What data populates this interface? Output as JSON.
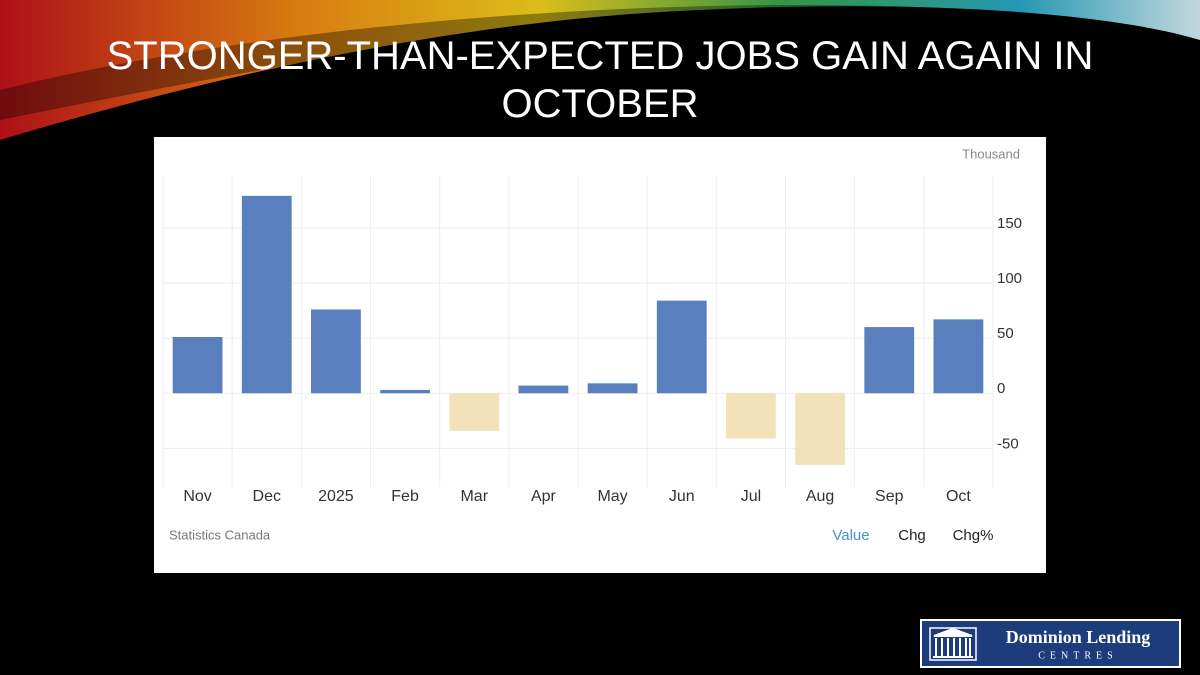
{
  "slide_title": "STRONGER-THAN-EXPECTED JOBS GAIN AGAIN IN OCTOBER",
  "logo": {
    "name": "Dominion Lending",
    "sub": "CENTRES"
  },
  "chart_data": {
    "type": "bar",
    "unit": "Thousand",
    "source": "Statistics Canada",
    "tabs": [
      "Value",
      "Chg",
      "Chg%"
    ],
    "categories": [
      "Nov",
      "Dec",
      "2025",
      "Feb",
      "Mar",
      "Apr",
      "May",
      "Jun",
      "Jul",
      "Aug",
      "Sep",
      "Oct"
    ],
    "values": [
      51,
      179,
      76,
      3,
      -34,
      7,
      9,
      84,
      -41,
      -65,
      60,
      67
    ],
    "color": "#5a7fbe",
    "negative_color": "#f3e1ba",
    "ylim": [
      -85,
      197
    ],
    "yticks": [
      -50,
      0,
      50,
      100,
      150
    ],
    "grid": true
  }
}
